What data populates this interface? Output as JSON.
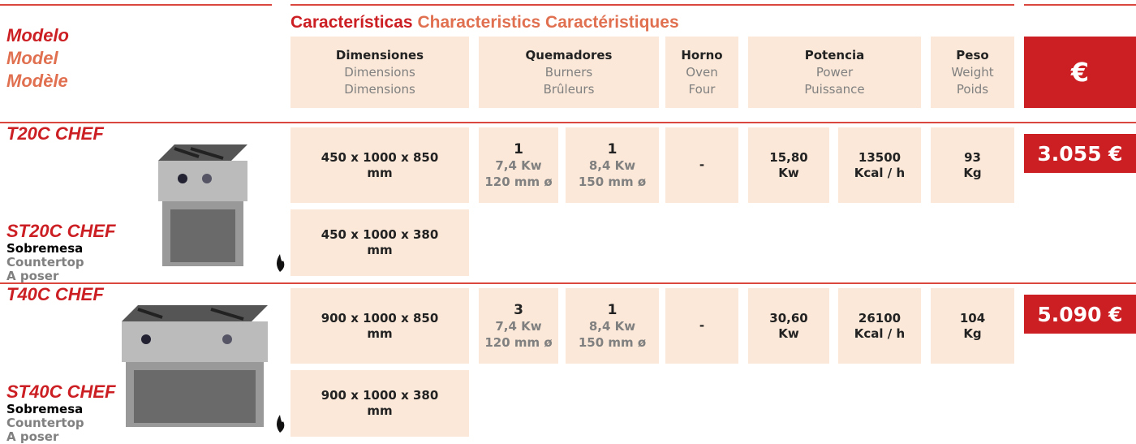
{
  "header": {
    "model": [
      "Modelo",
      "Model",
      "Modèle"
    ],
    "characteristics": [
      "Características",
      "Characteristics",
      "Caractéristiques"
    ],
    "columns": [
      [
        "Dimensiones",
        "Dimensions",
        "Dimensions"
      ],
      [
        "Quemadores",
        "Burners",
        "Brûleurs"
      ],
      [
        "Horno",
        "Oven",
        "Four"
      ],
      [
        "Potencia",
        "Power",
        "Puissance"
      ],
      [
        "Peso",
        "Weight",
        "Poids"
      ]
    ],
    "price_symbol": "€"
  },
  "products": [
    {
      "models": [
        "T20C CHEF",
        "ST20C CHEF"
      ],
      "type": [
        "Sobremesa",
        "Countertop",
        "A poser"
      ],
      "dims": [
        "450 x 1000 x 850 mm",
        "450 x 1000 x 380 mm"
      ],
      "burners": [
        {
          "count": "1",
          "power": "7,4 Kw",
          "size": "120 mm ø"
        },
        {
          "count": "1",
          "power": "8,4 Kw",
          "size": "150 mm ø"
        }
      ],
      "oven": "-",
      "power_kw": "15,80 Kw",
      "power_kcal": "13500 Kcal / h",
      "weight": "93 Kg",
      "price": "3.055 €"
    },
    {
      "models": [
        "T40C CHEF",
        "ST40C CHEF"
      ],
      "type": [
        "Sobremesa",
        "Countertop",
        "A poser"
      ],
      "dims": [
        "900 x 1000 x 850 mm",
        "900 x 1000 x 380 mm"
      ],
      "burners": [
        {
          "count": "3",
          "power": "7,4 Kw",
          "size": "120 mm ø"
        },
        {
          "count": "1",
          "power": "8,4 Kw",
          "size": "150 mm ø"
        }
      ],
      "oven": "-",
      "power_kw": "30,60 Kw",
      "power_kcal": "26100 Kcal / h",
      "weight": "104 Kg",
      "price": "5.090 €"
    }
  ]
}
